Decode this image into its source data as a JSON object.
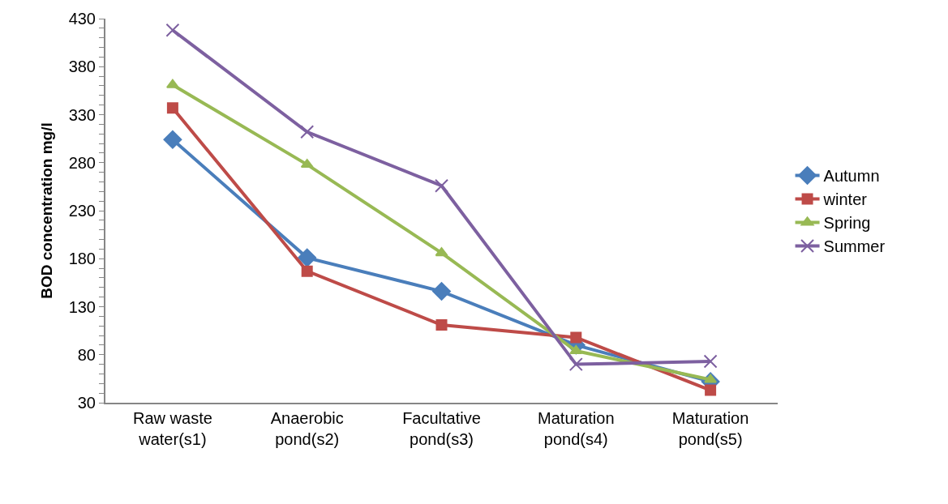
{
  "chart_data": {
    "type": "line",
    "ylabel": "BOD concentration mg/l",
    "categories": [
      "Raw waste water(s1)",
      "Anaerobic pond(s2)",
      "Facultative pond(s3)",
      "Maturation pond(s4)",
      "Maturation pond(s5)"
    ],
    "series": [
      {
        "name": "Autumn",
        "color": "#4a7ebb",
        "marker": "diamond",
        "values": [
          304,
          181,
          146,
          90,
          52
        ]
      },
      {
        "name": "winter",
        "color": "#be4b48",
        "marker": "square",
        "values": [
          337,
          167,
          111,
          98,
          43
        ]
      },
      {
        "name": "Spring",
        "color": "#98b954",
        "marker": "triangle",
        "values": [
          361,
          278,
          186,
          84,
          54
        ]
      },
      {
        "name": "Summer",
        "color": "#7d60a0",
        "marker": "cross",
        "values": [
          418,
          312,
          256,
          70,
          73
        ]
      }
    ],
    "ylim": [
      30,
      430
    ],
    "yticks": [
      30,
      {
        "value": 40,
        "label": null
      },
      {
        "value": 50,
        "label": null
      },
      {
        "value": 60,
        "label": null
      },
      {
        "value": 70,
        "label": null
      },
      80,
      {
        "value": 90,
        "label": null
      },
      {
        "value": 100,
        "label": null
      },
      {
        "value": 110,
        "label": null
      },
      {
        "value": 120,
        "label": null
      },
      130,
      {
        "value": 140,
        "label": null
      },
      {
        "value": 150,
        "label": null
      },
      {
        "value": 160,
        "label": null
      },
      {
        "value": 170,
        "label": null
      },
      180,
      {
        "value": 190,
        "label": null
      },
      {
        "value": 200,
        "label": null
      },
      {
        "value": 210,
        "label": null
      },
      {
        "value": 220,
        "label": null
      },
      230,
      {
        "value": 240,
        "label": null
      },
      {
        "value": 250,
        "label": null
      },
      {
        "value": 260,
        "label": null
      },
      {
        "value": 270,
        "label": null
      },
      280,
      {
        "value": 290,
        "label": null
      },
      {
        "value": 300,
        "label": null
      },
      {
        "value": 310,
        "label": null
      },
      {
        "value": 320,
        "label": null
      },
      330,
      {
        "value": 340,
        "label": null
      },
      {
        "value": 350,
        "label": null
      },
      {
        "value": 360,
        "label": null
      },
      {
        "value": 370,
        "label": null
      },
      380,
      {
        "value": 390,
        "label": null
      },
      {
        "value": 400,
        "label": null
      },
      {
        "value": 410,
        "label": null
      },
      {
        "value": 420,
        "label": null
      },
      430
    ],
    "legend": "right",
    "line_style": "solid"
  }
}
